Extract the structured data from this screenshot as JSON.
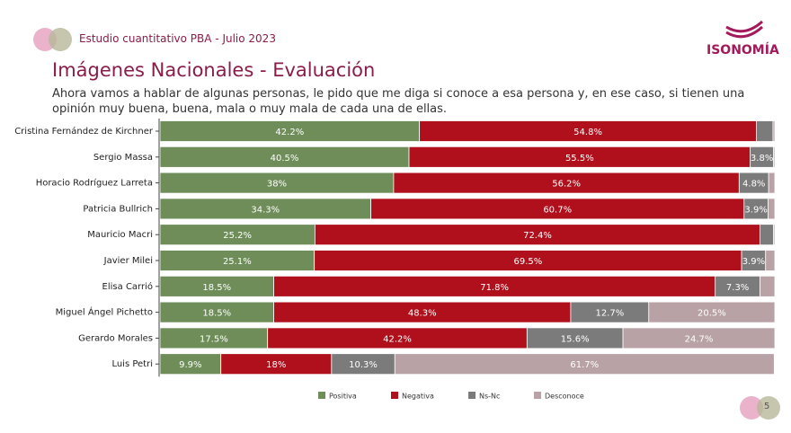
{
  "header": {
    "study": "Estudio cuantitativo PBA - Julio 2023",
    "logo": "ISONOMÍA",
    "page_number": "5"
  },
  "chart_data": {
    "type": "stacked-bar-horizontal",
    "title": "Imágenes Nacionales - Evaluación",
    "subtitle": "Ahora vamos a hablar de algunas personas, le pido que me diga si conoce a esa persona y, en ese caso, si tienen una opinión muy buena, buena, mala o muy mala de cada una de ellas.",
    "categories": [
      "Cristina Fernández de Kirchner",
      "Sergio Massa",
      "Horacio Rodríguez Larreta",
      "Patricia Bullrich",
      "Mauricio Macri",
      "Javier Milei",
      "Elisa Carrió",
      "Miguel Ángel Pichetto",
      "Gerardo Morales",
      "Luis Petri"
    ],
    "xlim": [
      0,
      100
    ],
    "series": [
      {
        "name": "Positiva",
        "color": "#6e8d58",
        "values": [
          42.2,
          40.5,
          38,
          34.3,
          25.2,
          25.1,
          18.5,
          18.5,
          17.5,
          9.9
        ],
        "value_labels": [
          "42.2%",
          "40.5%",
          "38%",
          "34.3%",
          "25.2%",
          "25.1%",
          "18.5%",
          "18.5%",
          "17.5%",
          "9.9%"
        ]
      },
      {
        "name": "Negativa",
        "color": "#b0101c",
        "values": [
          54.8,
          55.5,
          56.2,
          60.7,
          72.4,
          69.5,
          71.8,
          48.3,
          42.2,
          18
        ],
        "value_labels": [
          "54.8%",
          "55.5%",
          "56.2%",
          "60.7%",
          "72.4%",
          "69.5%",
          "71.8%",
          "48.3%",
          "42.2%",
          "18%"
        ]
      },
      {
        "name": "Ns-Nc",
        "color": "#7b7b7b",
        "values": [
          2.7,
          3.8,
          4.8,
          3.9,
          2.2,
          3.9,
          7.3,
          12.7,
          15.6,
          10.3
        ],
        "value_labels": [
          null,
          "3.8%",
          "4.8%",
          "3.9%",
          null,
          "3.9%",
          "7.3%",
          "12.7%",
          "15.6%",
          "10.3%"
        ]
      },
      {
        "name": "Desconoce",
        "color": "#b8a2a5",
        "values": [
          0.3,
          0.2,
          1,
          1.1,
          0.2,
          1.5,
          2.4,
          20.5,
          24.7,
          61.7
        ],
        "value_labels": [
          null,
          null,
          null,
          null,
          null,
          null,
          null,
          "20.5%",
          "24.7%",
          "61.7%"
        ]
      }
    ]
  }
}
